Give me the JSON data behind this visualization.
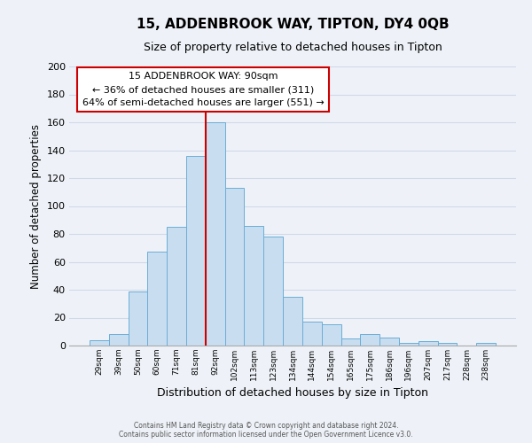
{
  "title": "15, ADDENBROOK WAY, TIPTON, DY4 0QB",
  "subtitle": "Size of property relative to detached houses in Tipton",
  "xlabel": "Distribution of detached houses by size in Tipton",
  "ylabel": "Number of detached properties",
  "footer_line1": "Contains HM Land Registry data © Crown copyright and database right 2024.",
  "footer_line2": "Contains public sector information licensed under the Open Government Licence v3.0.",
  "bin_labels": [
    "29sqm",
    "39sqm",
    "50sqm",
    "60sqm",
    "71sqm",
    "81sqm",
    "92sqm",
    "102sqm",
    "113sqm",
    "123sqm",
    "134sqm",
    "144sqm",
    "154sqm",
    "165sqm",
    "175sqm",
    "186sqm",
    "196sqm",
    "207sqm",
    "217sqm",
    "228sqm",
    "238sqm"
  ],
  "bar_values": [
    4,
    8,
    39,
    67,
    85,
    136,
    160,
    113,
    86,
    78,
    35,
    17,
    15,
    5,
    8,
    6,
    2,
    3,
    2,
    0,
    2
  ],
  "bar_color": "#c9ddf0",
  "bar_edge_color": "#6aaed6",
  "vline_color": "#cc0000",
  "annotation_title": "15 ADDENBROOK WAY: 90sqm",
  "annotation_line1": "← 36% of detached houses are smaller (311)",
  "annotation_line2": "64% of semi-detached houses are larger (551) →",
  "annotation_box_color": "#ffffff",
  "annotation_box_edge": "#cc0000",
  "ylim": [
    0,
    200
  ],
  "yticks": [
    0,
    20,
    40,
    60,
    80,
    100,
    120,
    140,
    160,
    180,
    200
  ],
  "grid_color": "#d0d8e8",
  "bg_color": "#eef2f8",
  "title_fontsize": 11,
  "subtitle_fontsize": 9
}
